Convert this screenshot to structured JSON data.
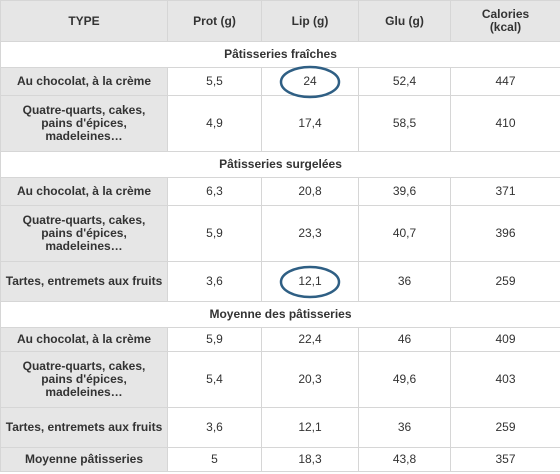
{
  "headers": [
    "TYPE",
    "Prot (g)",
    "Lip (g)",
    "Glu (g)",
    "Calories (kcal)"
  ],
  "sections": [
    {
      "title": "Pâtisseries fraîches",
      "rows": [
        {
          "type": "Au chocolat, à la crème",
          "prot": "5,5",
          "lip": "24",
          "glu": "52,4",
          "cal": "447",
          "lip_circled": true
        },
        {
          "type": "Quatre-quarts, cakes, pains d'épices, madeleines…",
          "prot": "4,9",
          "lip": "17,4",
          "glu": "58,5",
          "cal": "410"
        }
      ]
    },
    {
      "title": "Pâtisseries surgelées",
      "rows": [
        {
          "type": "Au chocolat, à la crème",
          "prot": "6,3",
          "lip": "20,8",
          "glu": "39,6",
          "cal": "371"
        },
        {
          "type": "Quatre-quarts, cakes, pains d'épices, madeleines…",
          "prot": "5,9",
          "lip": "23,3",
          "glu": "40,7",
          "cal": "396"
        },
        {
          "type": "Tartes, entremets aux fruits",
          "prot": "3,6",
          "lip": "12,1",
          "glu": "36",
          "cal": "259",
          "lip_circled": true
        }
      ]
    },
    {
      "title": "Moyenne des pâtisseries",
      "rows": [
        {
          "type": "Au chocolat, à la crème",
          "prot": "5,9",
          "lip": "22,4",
          "glu": "46",
          "cal": "409"
        },
        {
          "type": "Quatre-quarts, cakes, pains d'épices, madeleines…",
          "prot": "5,4",
          "lip": "20,3",
          "glu": "49,6",
          "cal": "403"
        },
        {
          "type": "Tartes, entremets aux fruits",
          "prot": "3,6",
          "lip": "12,1",
          "glu": "36",
          "cal": "259"
        },
        {
          "type": "Moyenne pâtisseries",
          "prot": "5",
          "lip": "18,3",
          "glu": "43,8",
          "cal": "357"
        }
      ]
    }
  ],
  "highlight_color": "#2f5f84"
}
